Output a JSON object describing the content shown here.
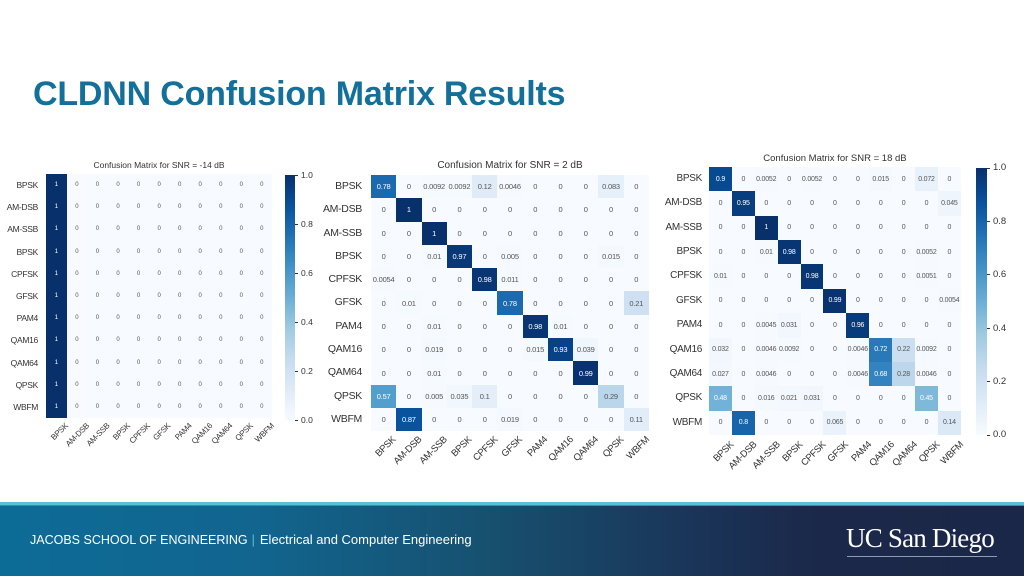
{
  "slide": {
    "title": "CLDNN Confusion Matrix Results"
  },
  "footer": {
    "school": "JACOBS SCHOOL OF ENGINEERING",
    "separator": "|",
    "department": "Electrical and Computer Engineering",
    "logo_text": "UC San Diego"
  },
  "colors": {
    "title": "#13709a",
    "footer_accent": "#56c2d4",
    "footer_left": "#0d6c96",
    "footer_right": "#1b2748",
    "cell_text_dark": "#555555",
    "cell_text_light": "#ffffff",
    "cmap_blues": [
      "#f7fbff",
      "#deebf7",
      "#c6dbef",
      "#9ecae1",
      "#6baed6",
      "#4292c6",
      "#2171b5",
      "#08519c",
      "#08306b"
    ]
  },
  "chart_data": [
    {
      "type": "heatmap",
      "title": "Confusion Matrix for SNR = -14 dB",
      "xlabel": "",
      "ylabel": "",
      "xlabels": [
        "BPSK",
        "AM-DSB",
        "AM-SSB",
        "BPSK",
        "CPFSK",
        "GFSK",
        "PAM4",
        "QAM16",
        "QAM64",
        "QPSK",
        "WBFM"
      ],
      "ylabels": [
        "BPSK",
        "AM-DSB",
        "AM-SSB",
        "BPSK",
        "CPFSK",
        "GFSK",
        "PAM4",
        "QAM16",
        "QAM64",
        "QPSK",
        "WBFM"
      ],
      "values": [
        [
          1,
          0,
          0,
          0,
          0,
          0,
          0,
          0,
          0,
          0,
          0
        ],
        [
          1,
          0,
          0,
          0,
          0,
          0,
          0,
          0,
          0,
          0,
          0
        ],
        [
          1,
          0,
          0,
          0,
          0,
          0,
          0,
          0,
          0,
          0,
          0
        ],
        [
          1,
          0,
          0,
          0,
          0,
          0,
          0,
          0,
          0,
          0,
          0
        ],
        [
          1,
          0,
          0,
          0,
          0,
          0,
          0,
          0,
          0,
          0,
          0
        ],
        [
          1,
          0,
          0,
          0,
          0,
          0,
          0,
          0,
          0,
          0,
          0
        ],
        [
          1,
          0,
          0,
          0,
          0,
          0,
          0,
          0,
          0,
          0,
          0
        ],
        [
          1,
          0,
          0,
          0,
          0,
          0,
          0,
          0,
          0,
          0,
          0
        ],
        [
          1,
          0,
          0,
          0,
          0,
          0,
          0,
          0,
          0,
          0,
          0
        ],
        [
          1,
          0,
          0,
          0,
          0,
          0,
          0,
          0,
          0,
          0,
          0
        ],
        [
          1,
          0,
          0,
          0,
          0,
          0,
          0,
          0,
          0,
          0,
          0
        ]
      ],
      "colorbar": {
        "range": [
          0,
          1
        ],
        "ticks": [
          "1.0",
          "0.8",
          "0.6",
          "0.4",
          "0.2",
          "0.0"
        ]
      },
      "cmap": "Blues"
    },
    {
      "type": "heatmap",
      "title": "Confusion Matrix for SNR = 2 dB",
      "xlabel": "",
      "ylabel": "",
      "xlabels": [
        "BPSK",
        "AM-DSB",
        "AM-SSB",
        "BPSK",
        "CPFSK",
        "GFSK",
        "PAM4",
        "QAM16",
        "QAM64",
        "QPSK",
        "WBFM"
      ],
      "ylabels": [
        "BPSK",
        "AM-DSB",
        "AM-SSB",
        "BPSK",
        "CPFSK",
        "GFSK",
        "PAM4",
        "QAM16",
        "QAM64",
        "QPSK",
        "WBFM"
      ],
      "values": [
        [
          0.78,
          0,
          0.0092,
          0.0092,
          0.12,
          0.0046,
          0,
          0,
          0,
          0.083,
          0
        ],
        [
          0,
          1,
          0,
          0,
          0,
          0,
          0,
          0,
          0,
          0,
          0
        ],
        [
          0,
          0,
          1,
          0,
          0,
          0,
          0,
          0,
          0,
          0,
          0
        ],
        [
          0,
          0,
          0.01,
          0.97,
          0,
          0.005,
          0,
          0,
          0,
          0.015,
          0
        ],
        [
          0.0054,
          0,
          0,
          0,
          0.98,
          0.011,
          0,
          0,
          0,
          0,
          0
        ],
        [
          0,
          0.01,
          0,
          0,
          0,
          0.78,
          0,
          0,
          0,
          0,
          0.21
        ],
        [
          0,
          0,
          0.01,
          0,
          0,
          0,
          0.98,
          0.01,
          0,
          0,
          0
        ],
        [
          0,
          0,
          0.019,
          0,
          0,
          0,
          0.015,
          0.93,
          0.039,
          0,
          0
        ],
        [
          0,
          0,
          0.01,
          0,
          0,
          0,
          0,
          0,
          0.99,
          0,
          0
        ],
        [
          0.57,
          0,
          0.005,
          0.035,
          0.1,
          0,
          0,
          0,
          0,
          0.29,
          0
        ],
        [
          0,
          0.87,
          0,
          0,
          0,
          0.019,
          0,
          0,
          0,
          0,
          0.11
        ]
      ],
      "colorbar": null,
      "cmap": "Blues"
    },
    {
      "type": "heatmap",
      "title": "Confusion Matrix for SNR = 18 dB",
      "xlabel": "",
      "ylabel": "",
      "xlabels": [
        "BPSK",
        "AM-DSB",
        "AM-SSB",
        "BPSK",
        "CPFSK",
        "GFSK",
        "PAM4",
        "QAM16",
        "QAM64",
        "QPSK",
        "WBFM"
      ],
      "ylabels": [
        "BPSK",
        "AM-DSB",
        "AM-SSB",
        "BPSK",
        "CPFSK",
        "GFSK",
        "PAM4",
        "QAM16",
        "QAM64",
        "QPSK",
        "WBFM"
      ],
      "values": [
        [
          0.9,
          0,
          0.0052,
          0,
          0.0052,
          0,
          0,
          0.015,
          0,
          0.072,
          0
        ],
        [
          0,
          0.95,
          0,
          0,
          0,
          0,
          0,
          0,
          0,
          0,
          0.045
        ],
        [
          0,
          0,
          1,
          0,
          0,
          0,
          0,
          0,
          0,
          0,
          0
        ],
        [
          0,
          0,
          0.01,
          0.98,
          0,
          0,
          0,
          0,
          0,
          0.0052,
          0
        ],
        [
          0.01,
          0,
          0,
          0,
          0.98,
          0,
          0,
          0,
          0,
          0.0051,
          0
        ],
        [
          0,
          0,
          0,
          0,
          0,
          0.99,
          0,
          0,
          0,
          0,
          0.0054
        ],
        [
          0,
          0,
          0.0045,
          0.031,
          0,
          0,
          0.96,
          0,
          0,
          0,
          0
        ],
        [
          0.032,
          0,
          0.0046,
          0.0092,
          0,
          0,
          0.0046,
          0.72,
          0.22,
          0.0092,
          0
        ],
        [
          0.027,
          0,
          0.0046,
          0,
          0,
          0,
          0.0046,
          0.68,
          0.28,
          0.0046,
          0
        ],
        [
          0.48,
          0,
          0.016,
          0.021,
          0.031,
          0,
          0,
          0,
          0,
          0.45,
          0
        ],
        [
          0,
          0.8,
          0,
          0,
          0,
          0.065,
          0,
          0,
          0,
          0,
          0.14
        ]
      ],
      "colorbar": {
        "range": [
          0,
          1
        ],
        "ticks": [
          "1.0",
          "0.8",
          "0.6",
          "0.4",
          "0.2",
          "0.0"
        ]
      },
      "cmap": "Blues"
    }
  ]
}
